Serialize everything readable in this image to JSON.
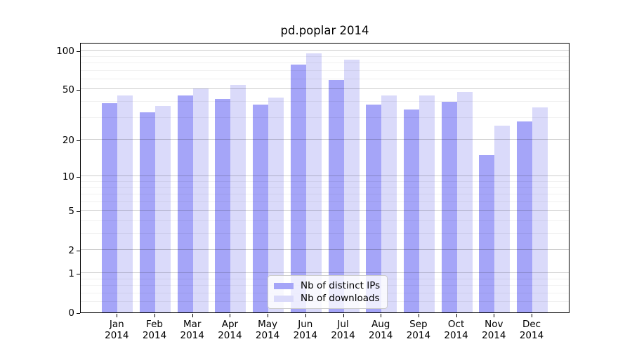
{
  "title": "pd.poplar 2014",
  "colors": {
    "distinct_ips": "#a5a5f8",
    "downloads": "#dadafa",
    "background": "#ffffff"
  },
  "chart_data": {
    "type": "bar",
    "title": "pd.poplar 2014",
    "months": [
      "Jan",
      "Feb",
      "Mar",
      "Apr",
      "May",
      "Jun",
      "Jul",
      "Aug",
      "Sep",
      "Oct",
      "Nov",
      "Dec"
    ],
    "x_tick_year": "2014",
    "categories": [
      "Jan 2014",
      "Feb 2014",
      "Mar 2014",
      "Apr 2014",
      "May 2014",
      "Jun 2014",
      "Jul 2014",
      "Aug 2014",
      "Sep 2014",
      "Oct 2014",
      "Nov 2014",
      "Dec 2014"
    ],
    "series": [
      {
        "name": "Nb of distinct IPs",
        "color": "#a5a5f8",
        "values": [
          39,
          33,
          45,
          42,
          38,
          78,
          59,
          38,
          35,
          40,
          15,
          28
        ]
      },
      {
        "name": "Nb of downloads",
        "color": "#dadafa",
        "values": [
          45,
          37,
          51,
          54,
          43,
          95,
          85,
          45,
          45,
          48,
          26,
          36
        ]
      }
    ],
    "xlabel": "",
    "ylabel": "",
    "yscale": "log1p",
    "yticks_major": [
      0,
      1,
      2,
      5,
      10,
      20,
      50,
      100
    ],
    "yticks_minor": [
      0.2,
      0.4,
      0.6,
      0.8,
      3,
      4,
      6,
      7,
      8,
      9,
      30,
      40,
      60,
      70,
      80,
      90
    ],
    "ylim": [
      0,
      115
    ],
    "grid": "both",
    "legend_position": "lower center"
  }
}
